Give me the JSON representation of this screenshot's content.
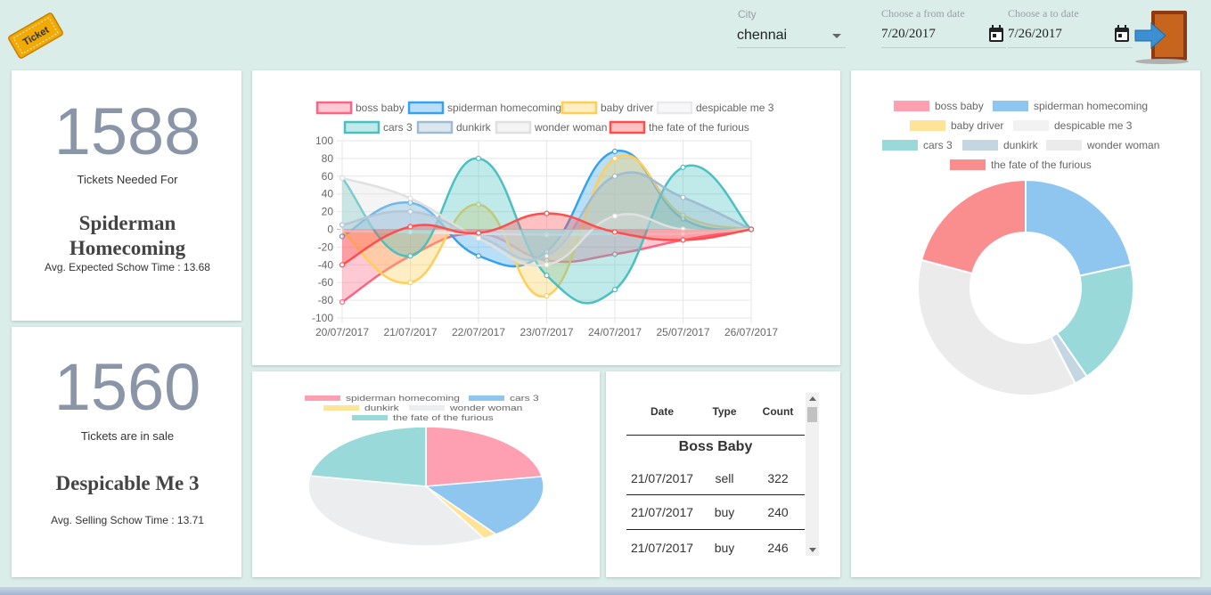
{
  "header": {
    "city_label": "City",
    "city_value": "chennai",
    "from_label": "Choose a from date",
    "from_value": "7/20/2017",
    "to_label": "Choose a to date",
    "to_value": "7/26/2017",
    "logo_text": "Ticket"
  },
  "stat1": {
    "number": "1588",
    "caption": "Tickets Needed For",
    "movie_line1": "Spiderman",
    "movie_line2": "Homecoming",
    "avg": "Avg. Expected Schow Time : 13.68"
  },
  "stat2": {
    "number": "1560",
    "caption": "Tickets are in sale",
    "movie": "Despicable Me 3",
    "avg": "Avg. Selling Schow Time : 13.71"
  },
  "colors": {
    "boss baby": "#ff6384",
    "spiderman homecoming": "#36a2eb",
    "baby driver": "#ffce56",
    "despicable me 3": "#e7e9ed",
    "cars 3": "#4bc0c0",
    "dunkirk": "#9fbbd1",
    "wonder woman": "#e0e0e0",
    "the fate of the furious": "#ff4d4d"
  },
  "chart_data": [
    {
      "type": "area",
      "categories": [
        "20/07/2017",
        "21/07/2017",
        "22/07/2017",
        "23/07/2017",
        "24/07/2017",
        "25/07/2017",
        "26/07/2017"
      ],
      "ylim": [
        -100,
        100
      ],
      "yticks": [
        100,
        80,
        60,
        40,
        20,
        0,
        -20,
        -40,
        -60,
        -80,
        -100
      ],
      "grid": true,
      "legend": "top",
      "series": [
        {
          "name": "boss baby",
          "values": [
            -82,
            -30,
            -5,
            -35,
            -28,
            -12,
            0
          ]
        },
        {
          "name": "spiderman homecoming",
          "values": [
            -8,
            30,
            -30,
            -25,
            88,
            12,
            0
          ]
        },
        {
          "name": "baby driver",
          "values": [
            -2,
            -60,
            28,
            -75,
            80,
            16,
            0
          ]
        },
        {
          "name": "despicable me 3",
          "values": [
            -2,
            -3,
            -5,
            -6,
            -5,
            -5,
            0
          ]
        },
        {
          "name": "cars 3",
          "values": [
            58,
            -30,
            80,
            -52,
            -68,
            70,
            0
          ]
        },
        {
          "name": "dunkirk",
          "values": [
            5,
            20,
            -8,
            -30,
            60,
            36,
            0
          ]
        },
        {
          "name": "wonder woman",
          "values": [
            58,
            35,
            -10,
            -40,
            15,
            0,
            0
          ]
        },
        {
          "name": "the fate of the furious",
          "values": [
            -40,
            3,
            -4,
            18,
            -3,
            -12,
            0
          ]
        }
      ]
    },
    {
      "type": "pie",
      "legend": "top",
      "series": [
        {
          "name": "spiderman homecoming",
          "value": 205
        },
        {
          "name": "cars 3",
          "value": 160
        },
        {
          "name": "dunkirk",
          "value": 18
        },
        {
          "name": "wonder woman",
          "value": 330
        },
        {
          "name": "the fate of the furious",
          "value": 203
        }
      ],
      "slice_colors": [
        "#ff9fb2",
        "#8ec6f0",
        "#ffe399",
        "#ebedef",
        "#99d9d9"
      ]
    },
    {
      "type": "pie",
      "legend": "top",
      "series": [
        {
          "name": "boss baby",
          "value": 0
        },
        {
          "name": "spiderman homecoming",
          "value": 213
        },
        {
          "name": "baby driver",
          "value": 0
        },
        {
          "name": "despicable me 3",
          "value": 0
        },
        {
          "name": "cars 3",
          "value": 186
        },
        {
          "name": "dunkirk",
          "value": 20
        },
        {
          "name": "wonder woman",
          "value": 363
        },
        {
          "name": "the fate of the furious",
          "value": 206
        }
      ],
      "slice_colors": [
        "#ff9fb2",
        "#8ec6f0",
        "#ffe399",
        "#f2f2f2",
        "#99d9d9",
        "#c4d6e2",
        "#ebebeb",
        "#fa8e8e"
      ]
    }
  ],
  "table": {
    "headers": [
      "Date",
      "Type",
      "Count"
    ],
    "group": "Boss Baby",
    "rows": [
      [
        "21/07/2017",
        "sell",
        "322"
      ],
      [
        "21/07/2017",
        "buy",
        "240"
      ],
      [
        "21/07/2017",
        "buy",
        "246"
      ]
    ]
  }
}
